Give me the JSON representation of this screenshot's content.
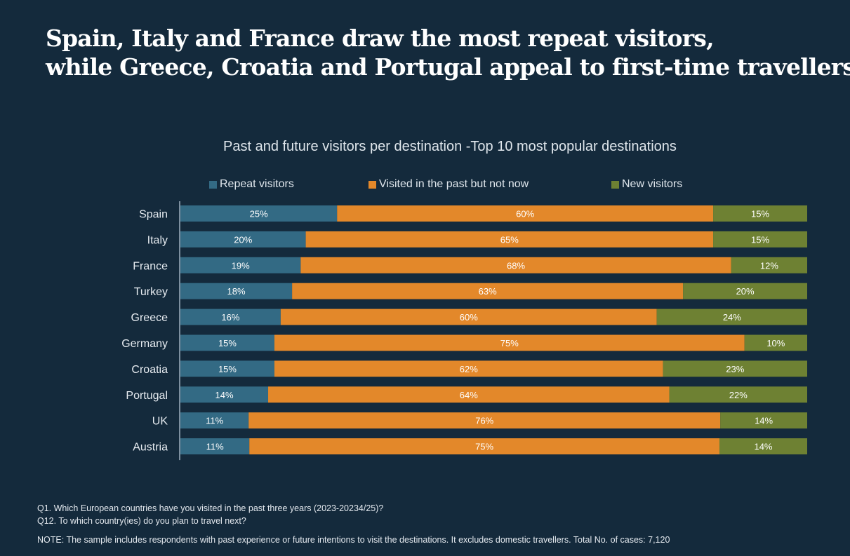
{
  "headline": {
    "line1": "Spain, Italy and France draw the most repeat visitors,",
    "line2": "while Greece, Croatia and Portugal appeal to first-time travellers"
  },
  "colors": {
    "background": "#142a3c",
    "repeat": "#336a84",
    "past": "#e3882a",
    "new": "#6e8133",
    "axis": "#9fb0bf"
  },
  "chart_data": {
    "type": "bar",
    "orientation": "horizontal",
    "stacked": true,
    "title": "Past and future visitors per destination -Top 10 most popular destinations",
    "legend_position": "top",
    "grid": false,
    "xlim": [
      0,
      100
    ],
    "categories": [
      "Spain",
      "Italy",
      "France",
      "Turkey",
      "Greece",
      "Germany",
      "Croatia",
      "Portugal",
      "UK",
      "Austria"
    ],
    "series": [
      {
        "name": "Repeat visitors",
        "color": "#336a84",
        "values": [
          25,
          20,
          19,
          18,
          16,
          15,
          15,
          14,
          11,
          11
        ]
      },
      {
        "name": "Visited in the past but not now",
        "color": "#e3882a",
        "values": [
          60,
          65,
          68,
          63,
          60,
          75,
          62,
          64,
          76,
          75
        ]
      },
      {
        "name": "New visitors",
        "color": "#6e8133",
        "values": [
          15,
          15,
          12,
          20,
          24,
          10,
          23,
          22,
          14,
          14
        ]
      }
    ],
    "value_suffix": "%"
  },
  "footnotes": {
    "q1": "Q1. Which European countries have you visited in the past three years (2023-20234/25)?",
    "q12": "Q12. To which country(ies) do you plan to travel next?",
    "note": "NOTE: The sample includes respondents with past experience or future intentions to visit the destinations. It excludes domestic travellers. Total No. of cases: 7,120"
  }
}
